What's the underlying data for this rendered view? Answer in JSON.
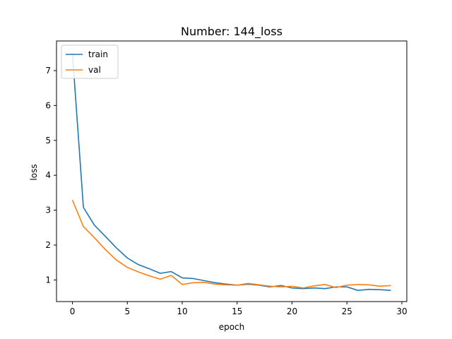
{
  "chart_data": {
    "type": "line",
    "title": "Number: 144_loss",
    "xlabel": "epoch",
    "ylabel": "loss",
    "xlim": [
      -1.45,
      30.45
    ],
    "ylim": [
      0.38,
      7.85
    ],
    "x_ticks": [
      0,
      5,
      10,
      15,
      20,
      25,
      30
    ],
    "y_ticks": [
      1,
      2,
      3,
      4,
      5,
      6,
      7
    ],
    "grid": false,
    "legend_position": "top-left",
    "x": [
      0,
      1,
      2,
      3,
      4,
      5,
      6,
      7,
      8,
      9,
      10,
      11,
      12,
      13,
      14,
      15,
      16,
      17,
      18,
      19,
      20,
      21,
      22,
      23,
      24,
      25,
      26,
      27,
      28,
      29
    ],
    "series": [
      {
        "name": "train",
        "color": "#1f77b4",
        "values": [
          7.5,
          3.08,
          2.57,
          2.25,
          1.92,
          1.63,
          1.44,
          1.32,
          1.19,
          1.24,
          1.06,
          1.04,
          0.98,
          0.92,
          0.88,
          0.85,
          0.88,
          0.85,
          0.8,
          0.84,
          0.77,
          0.75,
          0.77,
          0.75,
          0.8,
          0.8,
          0.7,
          0.73,
          0.72,
          0.7
        ]
      },
      {
        "name": "val",
        "color": "#ff7f0e",
        "values": [
          3.29,
          2.53,
          2.21,
          1.87,
          1.57,
          1.36,
          1.23,
          1.12,
          1.02,
          1.13,
          0.87,
          0.92,
          0.93,
          0.88,
          0.86,
          0.85,
          0.9,
          0.86,
          0.82,
          0.8,
          0.82,
          0.77,
          0.83,
          0.87,
          0.78,
          0.85,
          0.87,
          0.86,
          0.82,
          0.84
        ]
      }
    ]
  }
}
